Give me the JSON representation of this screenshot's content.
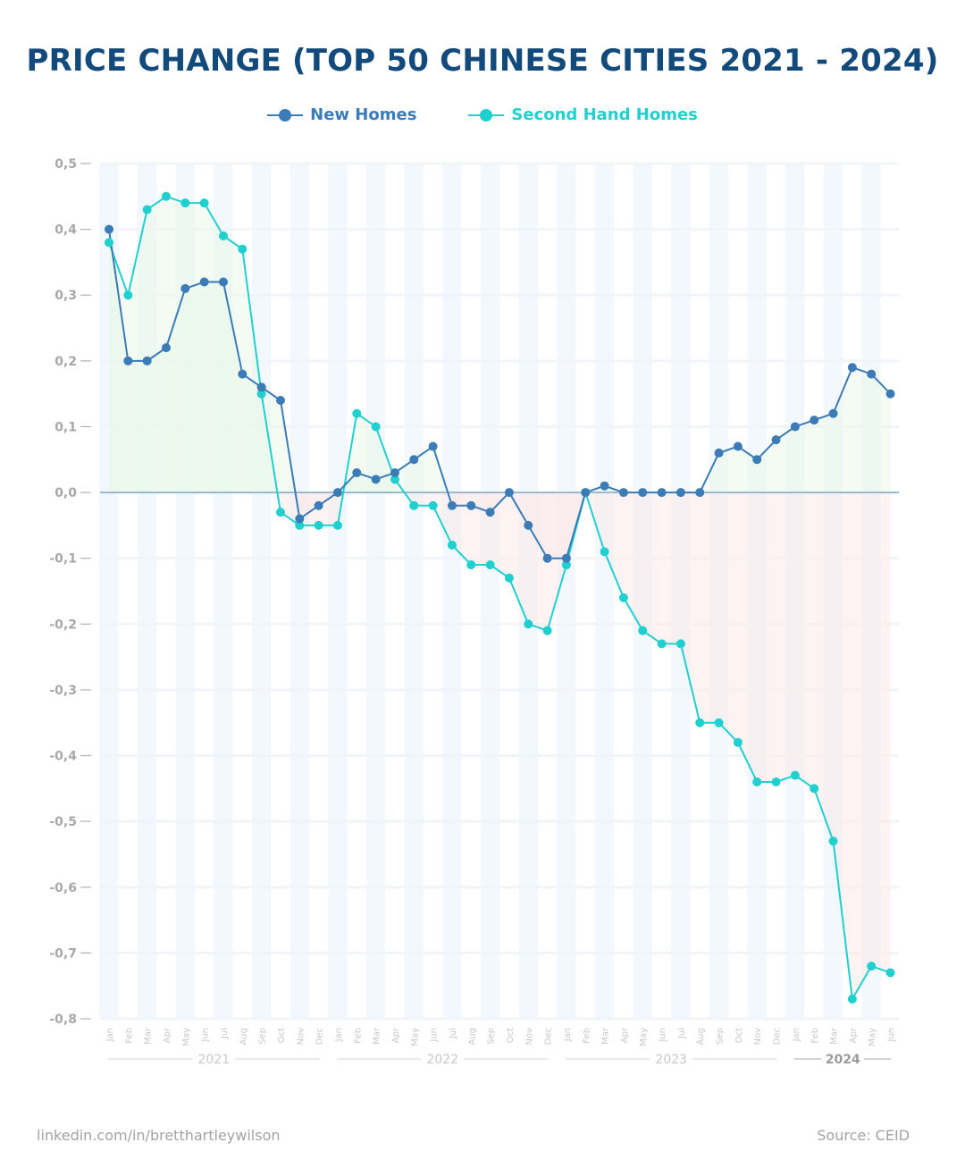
{
  "header": {
    "title": "PRICE CHANGE (TOP 50 CHINESE CITIES 2021 - 2024)"
  },
  "footer": {
    "credit": "linkedin.com/in/bretthartleywilson",
    "source": "Source: CEID"
  },
  "colors": {
    "title": "#124a7b",
    "new_homes": "#3b7bb6",
    "second_hand": "#1fd0cf",
    "positive_fill": "#eaf8ea",
    "negative_fill": "#fbeaea",
    "zero_line": "#7fa7c4",
    "tick_label": "#a8a8a8",
    "month_label": "#c8c8c8"
  },
  "chart_data": {
    "type": "line",
    "title": "PRICE CHANGE (TOP 50 CHINESE CITIES 2021 - 2024)",
    "x": [
      "Jan",
      "Feb",
      "Mar",
      "Apr",
      "May",
      "Jun",
      "Jul",
      "Aug",
      "Sep",
      "Oct",
      "Nov",
      "Dec",
      "Jan",
      "Feb",
      "Mar",
      "Apr",
      "May",
      "Jun",
      "Jul",
      "Aug",
      "Sep",
      "Oct",
      "Nov",
      "Dec",
      "Jan",
      "Feb",
      "Mar",
      "Apr",
      "May",
      "Jun",
      "Jul",
      "Aug",
      "Sep",
      "Oct",
      "Nov",
      "Dec",
      "Jan",
      "Feb",
      "Mar",
      "Apr",
      "May",
      "Jun"
    ],
    "years": [
      {
        "label": "2021",
        "start": 0,
        "end": 11
      },
      {
        "label": "2022",
        "start": 12,
        "end": 23
      },
      {
        "label": "2023",
        "start": 24,
        "end": 35
      },
      {
        "label": "2024",
        "start": 36,
        "end": 41
      }
    ],
    "highlight_year": "2024",
    "series": [
      {
        "name": "New Homes",
        "values": [
          0.4,
          0.2,
          0.2,
          0.22,
          0.31,
          0.32,
          0.32,
          0.18,
          0.16,
          0.14,
          -0.04,
          -0.02,
          0.0,
          0.03,
          0.02,
          0.03,
          0.05,
          0.07,
          -0.02,
          -0.02,
          -0.03,
          0.0,
          -0.05,
          -0.1,
          -0.1,
          0.0,
          0.01,
          0.0,
          0.0,
          0.0,
          0.0,
          0.0,
          0.06,
          0.07,
          0.05,
          0.08,
          0.1,
          0.11,
          0.12,
          0.19,
          0.18,
          0.15
        ]
      },
      {
        "name": "Second Hand Homes",
        "values": [
          0.38,
          0.3,
          0.43,
          0.45,
          0.44,
          0.44,
          0.39,
          0.37,
          0.15,
          -0.03,
          -0.05,
          -0.05,
          -0.05,
          0.12,
          0.1,
          0.02,
          -0.02,
          -0.02,
          -0.08,
          -0.11,
          -0.11,
          -0.13,
          -0.2,
          -0.21,
          -0.11,
          0.0,
          -0.09,
          -0.16,
          -0.21,
          -0.23,
          -0.23,
          -0.35,
          -0.35,
          -0.38,
          -0.44,
          -0.44,
          -0.43,
          -0.45,
          -0.53,
          -0.77,
          -0.72,
          -0.73
        ]
      }
    ],
    "ylim": [
      -0.8,
      0.5
    ],
    "yticks": [
      "0,5",
      "0,4",
      "0,3",
      "0,2",
      "0,1",
      "0,0",
      "-0,1",
      "-0,2",
      "-0,3",
      "-0,4",
      "-0,5",
      "-0,6",
      "-0,7",
      "-0,8"
    ],
    "grid": true,
    "legend": "top-center"
  }
}
